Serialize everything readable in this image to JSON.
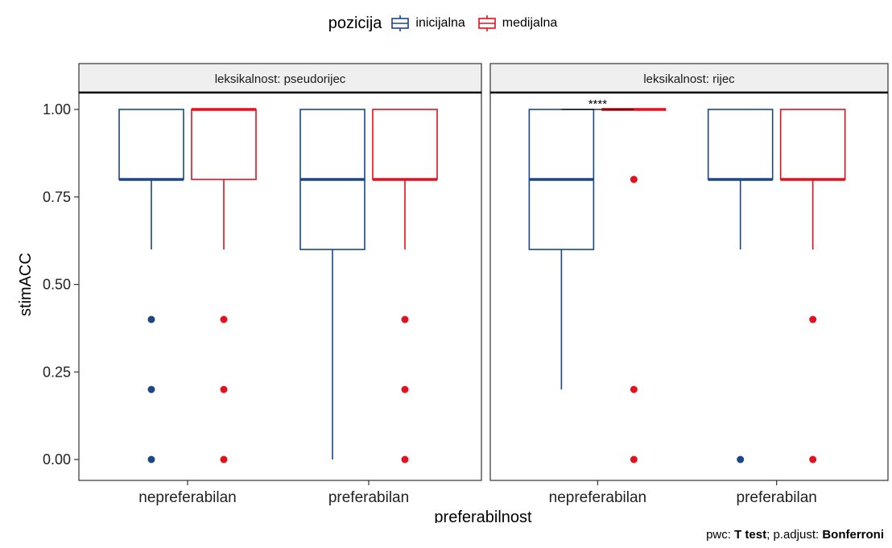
{
  "chart_data": {
    "type": "box",
    "legend": {
      "title": "pozicija",
      "position": "top",
      "entries": [
        {
          "name": "inicijalna",
          "color": "#1b4687"
        },
        {
          "name": "medijalna",
          "color": "#e3101d"
        }
      ]
    },
    "xlabel": "preferabilnost",
    "ylabel": "stimACC",
    "ylim": [
      -0.05,
      1.05
    ],
    "yticks": [
      "0.00",
      "0.25",
      "0.50",
      "0.75",
      "1.00"
    ],
    "categories": [
      "nepreferabilan",
      "preferabilan"
    ],
    "series": [
      "inicijalna",
      "medijalna"
    ],
    "panels": [
      {
        "title": "leksikalnost: pseudorijec",
        "boxes": [
          {
            "category": "nepreferabilan",
            "series": "inicijalna",
            "min": 0.6,
            "q1": 0.8,
            "median": 0.8,
            "q3": 1.0,
            "max": 1.0,
            "outliers": [
              0.4,
              0.2,
              0.0
            ]
          },
          {
            "category": "nepreferabilan",
            "series": "medijalna",
            "min": 0.6,
            "q1": 0.8,
            "median": 1.0,
            "q3": 1.0,
            "max": 1.0,
            "outliers": [
              0.4,
              0.2,
              0.0
            ]
          },
          {
            "category": "preferabilan",
            "series": "inicijalna",
            "min": 0.0,
            "q1": 0.6,
            "median": 0.8,
            "q3": 1.0,
            "max": 1.0,
            "outliers": []
          },
          {
            "category": "preferabilan",
            "series": "medijalna",
            "min": 0.6,
            "q1": 0.8,
            "median": 0.8,
            "q3": 1.0,
            "max": 1.0,
            "outliers": [
              0.4,
              0.2,
              0.0
            ]
          }
        ],
        "annotations": []
      },
      {
        "title": "leksikalnost: rijec",
        "boxes": [
          {
            "category": "nepreferabilan",
            "series": "inicijalna",
            "min": 0.2,
            "q1": 0.6,
            "median": 0.8,
            "q3": 1.0,
            "max": 1.0,
            "outliers": []
          },
          {
            "category": "nepreferabilan",
            "series": "medijalna",
            "min": 1.0,
            "q1": 1.0,
            "median": 1.0,
            "q3": 1.0,
            "max": 1.0,
            "outliers": [
              0.8,
              0.2,
              0.0
            ]
          },
          {
            "category": "preferabilan",
            "series": "inicijalna",
            "min": 0.6,
            "q1": 0.8,
            "median": 0.8,
            "q3": 1.0,
            "max": 1.0,
            "outliers": [
              0.0
            ]
          },
          {
            "category": "preferabilan",
            "series": "medijalna",
            "min": 0.6,
            "q1": 0.8,
            "median": 0.8,
            "q3": 1.0,
            "max": 1.0,
            "outliers": [
              0.4,
              0.0
            ]
          }
        ],
        "annotations": [
          {
            "text": "****",
            "category": "nepreferabilan",
            "y": 1.0
          }
        ]
      }
    ],
    "grid": false
  },
  "caption": {
    "pwc_prefix": "pwc: ",
    "pwc_value": "T test",
    "sep": "; p.adjust: ",
    "adjust_value": "Bonferroni"
  }
}
